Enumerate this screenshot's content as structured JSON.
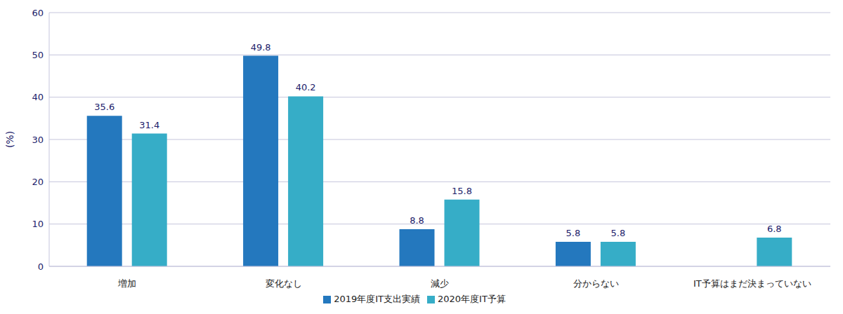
{
  "chart_data": {
    "type": "bar",
    "y_label": "(%)",
    "categories": [
      "増加",
      "変化なし",
      "減少",
      "分からない",
      "IT予算はまだ決まっていない"
    ],
    "series": [
      {
        "name": "2019年度IT支出実績",
        "color": "#2478be",
        "values": [
          35.6,
          49.8,
          8.8,
          5.8,
          null
        ]
      },
      {
        "name": "2020年度IT予算",
        "color": "#36adc7",
        "values": [
          31.4,
          40.2,
          15.8,
          5.8,
          6.8
        ]
      }
    ],
    "ylim": [
      0,
      60
    ],
    "yticks": [
      0,
      10,
      20,
      30,
      40,
      50,
      60
    ],
    "grid": true,
    "legend": "bottom",
    "data_labels": true
  }
}
